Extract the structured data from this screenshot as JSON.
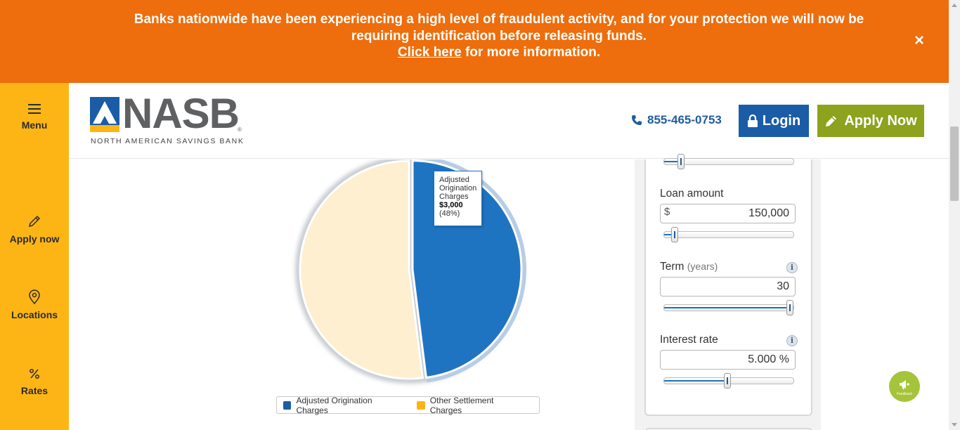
{
  "alert": {
    "message": "Banks nationwide have been experiencing a high level of fraudulent activity, and for your protection we will now be requiring identification before releasing funds.",
    "link_text": "Click here",
    "link_suffix": " for more information.",
    "close_icon": "×"
  },
  "sidebar": {
    "items": [
      {
        "label": "Menu",
        "icon": "hamburger-icon"
      },
      {
        "label": "Apply now",
        "icon": "pencil-icon"
      },
      {
        "label": "Locations",
        "icon": "map-pin-icon"
      },
      {
        "label": "Rates",
        "icon": "percent-icon"
      }
    ]
  },
  "header": {
    "logo_word": "NASB",
    "logo_reg": "®",
    "logo_subtitle": "NORTH AMERICAN SAVINGS BANK",
    "phone": "855-465-0753",
    "login_label": "Login",
    "apply_label": "Apply Now"
  },
  "colors": {
    "banner": "#ee6d0c",
    "sidebar": "#fdb515",
    "login": "#1a5da6",
    "apply": "#8da21d",
    "slice_origination": "#1f74c1",
    "slice_other": "#fdefcf",
    "legend_other": "#fdb515"
  },
  "chart_data": {
    "type": "pie",
    "slices": [
      {
        "label": "Adjusted Origination Charges",
        "value": 3000,
        "percent": 48
      },
      {
        "label": "Other Settlement Charges",
        "percent": 52
      }
    ],
    "tooltip": {
      "label": "Adjusted Origination Charges",
      "value": "$3,000",
      "percent": "(48%)"
    },
    "legend": [
      "Adjusted Origination Charges",
      "Other Settlement Charges"
    ],
    "legend_placement": "bottom"
  },
  "calculator": {
    "top_slider_level": 0.11,
    "loan_amount": {
      "label": "Loan amount",
      "prefix": "$",
      "value": "150,000",
      "slider_level": 0.06
    },
    "term": {
      "label": "Term",
      "unit": "(years)",
      "value": "30",
      "slider_level": 1.0
    },
    "interest_rate": {
      "label": "Interest rate",
      "value": "5.000 %",
      "slider_level": 0.49
    },
    "info_icon": "i"
  },
  "feedback": {
    "label": "Feedback"
  }
}
